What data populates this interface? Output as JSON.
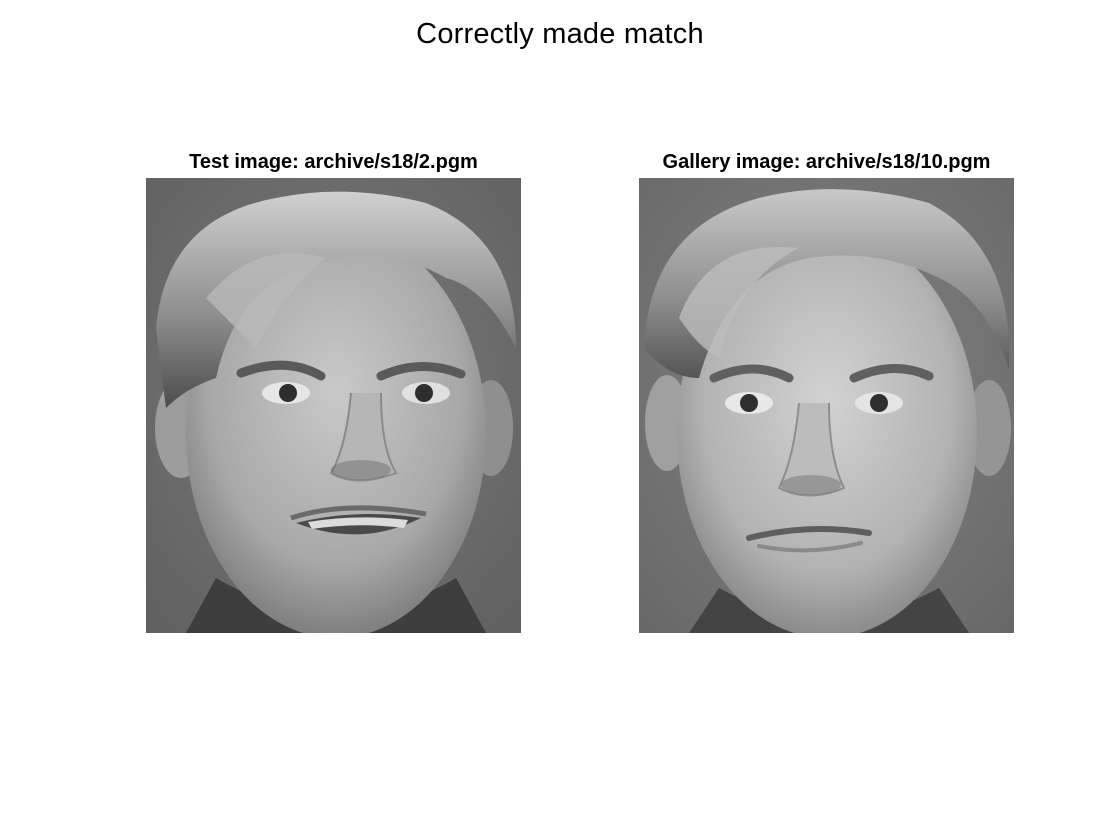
{
  "figure": {
    "title": "Correctly made match"
  },
  "panels": [
    {
      "title": "Test image: archive/s18/2.pgm",
      "image_description_icon": "face-photo-grayscale"
    },
    {
      "title": "Gallery image: archive/s18/10.pgm",
      "image_description_icon": "face-photo-grayscale"
    }
  ],
  "colors": {
    "background": "#ffffff",
    "image_background": "#6f6f6f",
    "text": "#000000"
  }
}
